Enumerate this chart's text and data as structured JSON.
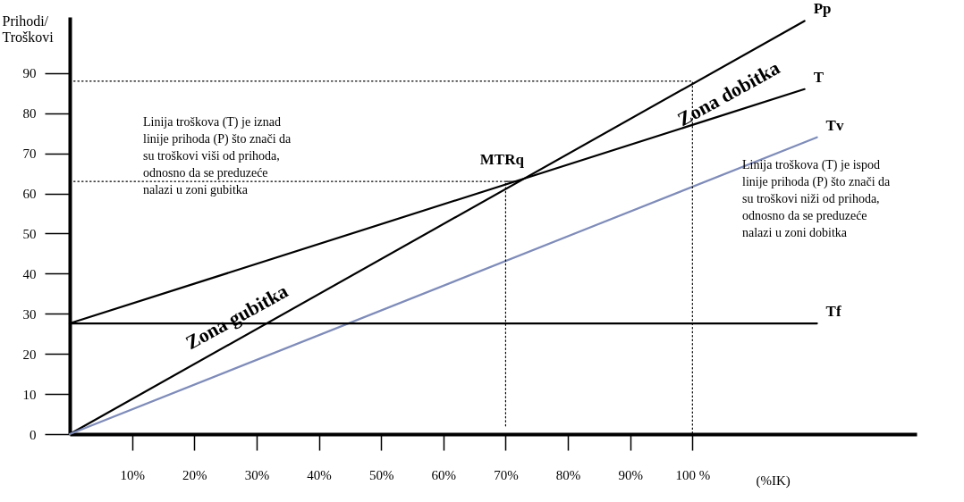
{
  "chart_data": {
    "type": "line",
    "xlabel": "(%IK)",
    "ylabel": "Prihodi/\nTroškovi",
    "xlim": [
      0,
      136
    ],
    "ylim": [
      0,
      104
    ],
    "xticks": [
      {
        "value": 10,
        "label": "10%"
      },
      {
        "value": 20,
        "label": "20%"
      },
      {
        "value": 30,
        "label": "30%"
      },
      {
        "value": 40,
        "label": "40%"
      },
      {
        "value": 50,
        "label": "50%"
      },
      {
        "value": 60,
        "label": "60%"
      },
      {
        "value": 70,
        "label": "70%"
      },
      {
        "value": 80,
        "label": "80%"
      },
      {
        "value": 90,
        "label": "90%"
      },
      {
        "value": 100,
        "label": "100 %"
      }
    ],
    "yticks": [
      0,
      10,
      20,
      30,
      40,
      50,
      60,
      70,
      80,
      90
    ],
    "series": [
      {
        "name": "Pp",
        "color": "#000000",
        "x": [
          0,
          118
        ],
        "values": [
          0,
          103
        ]
      },
      {
        "name": "T",
        "color": "#000000",
        "x": [
          0,
          118
        ],
        "values": [
          27.6,
          86
        ]
      },
      {
        "name": "Tv",
        "color": "#7f8cb8",
        "x": [
          0,
          120
        ],
        "values": [
          0,
          74
        ]
      },
      {
        "name": "Tf",
        "color": "#000000",
        "x": [
          0,
          120
        ],
        "values": [
          27.6,
          27.6
        ]
      },
      {
        "color": "#000000",
        "line_style": "dotted",
        "x": [
          0,
          72,
          70,
          70
        ],
        "values": [
          63,
          63,
          63,
          2
        ]
      },
      {
        "color": "#000000",
        "line_style": "dotted",
        "x": [
          0,
          100,
          100
        ],
        "values": [
          88,
          88,
          0
        ]
      }
    ],
    "annotations": [
      "Zona   gubitka",
      "Zona dobitka",
      {
        "text": "MTRq",
        "x": 73,
        "y": 63.5
      },
      "Linija troškova (T) je iznad\nlinije prihoda (P) što znači da\nsu troškovi viši od prihoda,\nodnosno da se preduzeće\nnalazi u zoni gubitka",
      "Linija troškova (T) je ispod\nlinije prihoda (P) što znači da\nsu troškovi niži od prihoda,\nodnosno da se preduzeće\nnalazi u zoni dobitka"
    ]
  }
}
